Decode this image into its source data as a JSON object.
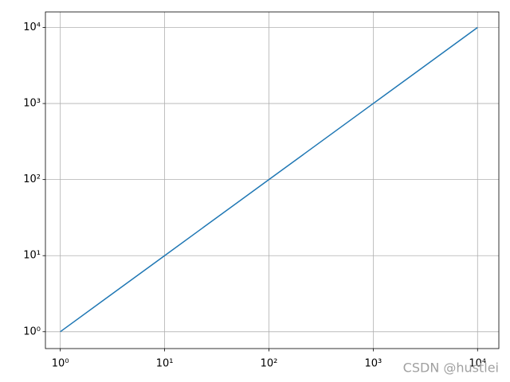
{
  "chart_data": {
    "type": "line",
    "x": [
      1,
      10,
      100,
      1000,
      10000
    ],
    "series": [
      {
        "color": "#1f77b4",
        "values": [
          1,
          10,
          100,
          1000,
          10000
        ]
      }
    ],
    "xscale": "log",
    "yscale": "log",
    "xlim": [
      0.72,
      16000
    ],
    "ylim": [
      0.6,
      16000
    ],
    "xticks": [
      {
        "value": 1,
        "label": "10⁰"
      },
      {
        "value": 10,
        "label": "10¹"
      },
      {
        "value": 100,
        "label": "10²"
      },
      {
        "value": 1000,
        "label": "10³"
      },
      {
        "value": 10000,
        "label": "10⁴"
      }
    ],
    "yticks": [
      {
        "value": 1,
        "label": "10⁰"
      },
      {
        "value": 10,
        "label": "10¹"
      },
      {
        "value": 100,
        "label": "10²"
      },
      {
        "value": 1000,
        "label": "10³"
      },
      {
        "value": 10000,
        "label": "10⁴"
      }
    ],
    "grid": true,
    "watermark": "CSDN @hustlei"
  }
}
